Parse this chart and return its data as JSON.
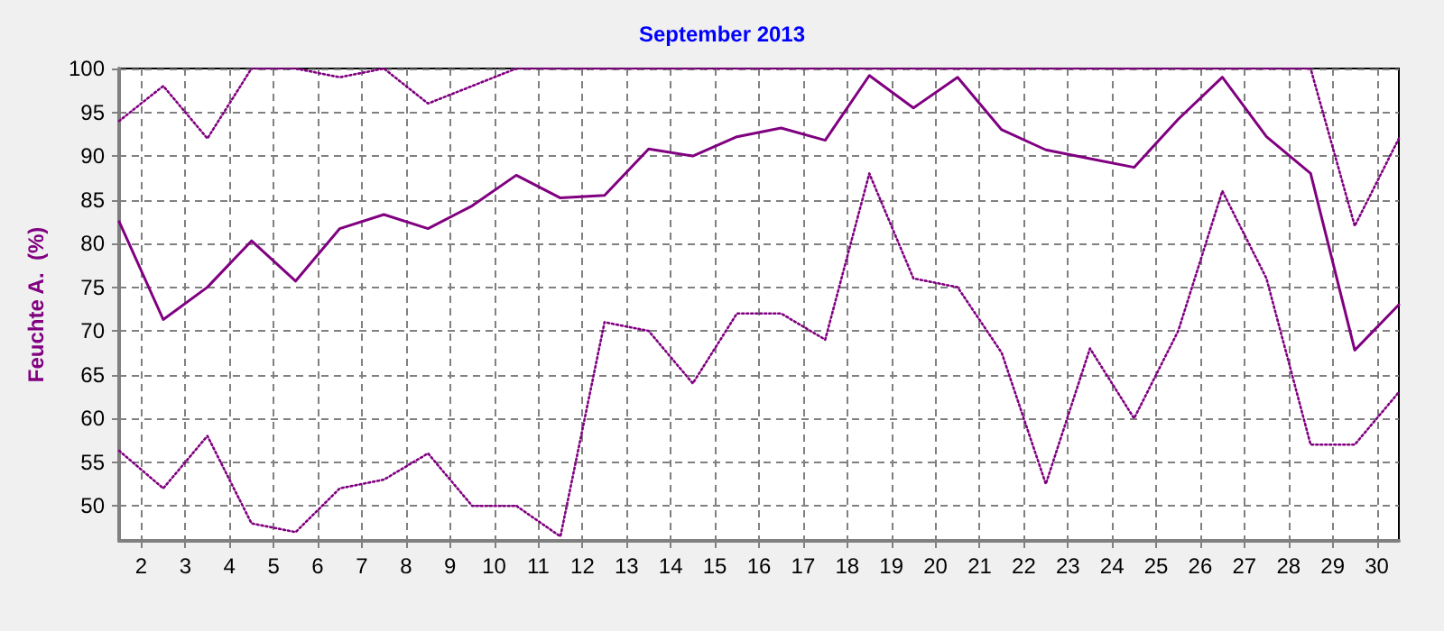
{
  "chart_data": {
    "type": "line",
    "title": "September 2013",
    "ylabel": "Feuchte A.  (%)",
    "x": [
      1.5,
      2.5,
      3.5,
      4.5,
      5.5,
      6.5,
      7.5,
      8.5,
      9.5,
      10.5,
      11.5,
      12.5,
      13.5,
      14.5,
      15.5,
      16.5,
      17.5,
      18.5,
      19.5,
      20.5,
      21.5,
      22.5,
      23.5,
      24.5,
      25.5,
      26.5,
      27.5,
      28.5,
      29.5,
      30.5
    ],
    "series": [
      {
        "color": "#800080",
        "line_style": "dotted",
        "values": [
          94,
          98,
          92,
          100,
          100,
          99,
          100,
          96,
          98,
          100,
          100,
          100,
          100,
          100,
          100,
          100,
          100,
          100,
          100,
          100,
          100,
          100,
          100,
          100,
          100,
          100,
          100,
          100,
          82,
          92
        ]
      },
      {
        "color": "#800080",
        "line_style": "solid",
        "values": [
          82.5,
          71.3,
          75,
          80.3,
          75.7,
          81.7,
          83.3,
          81.7,
          84.3,
          87.8,
          85.2,
          85.5,
          90.8,
          90,
          92.2,
          93.2,
          91.8,
          99.2,
          95.5,
          99,
          93,
          90.7,
          89.7,
          88.7,
          94.2,
          99,
          92.2,
          88,
          67.8,
          73
        ]
      },
      {
        "color": "#800080",
        "line_style": "dotted",
        "values": [
          56.3,
          52,
          58,
          48,
          47,
          52,
          53,
          56,
          50,
          50,
          46.5,
          71,
          70,
          64,
          72,
          72,
          69,
          88,
          76,
          75,
          67.5,
          52.5,
          68,
          60,
          70,
          86,
          76,
          57,
          57,
          63
        ]
      }
    ],
    "xlim": [
      1.5,
      30.5
    ],
    "xticks": [
      2,
      3,
      4,
      5,
      6,
      7,
      8,
      9,
      10,
      11,
      12,
      13,
      14,
      15,
      16,
      17,
      18,
      19,
      20,
      21,
      22,
      23,
      24,
      25,
      26,
      27,
      28,
      29,
      30
    ],
    "ylim": [
      46,
      100
    ],
    "yticks": [
      50,
      55,
      60,
      65,
      70,
      75,
      80,
      85,
      90,
      95,
      100
    ],
    "grid": true,
    "marker": "none"
  }
}
